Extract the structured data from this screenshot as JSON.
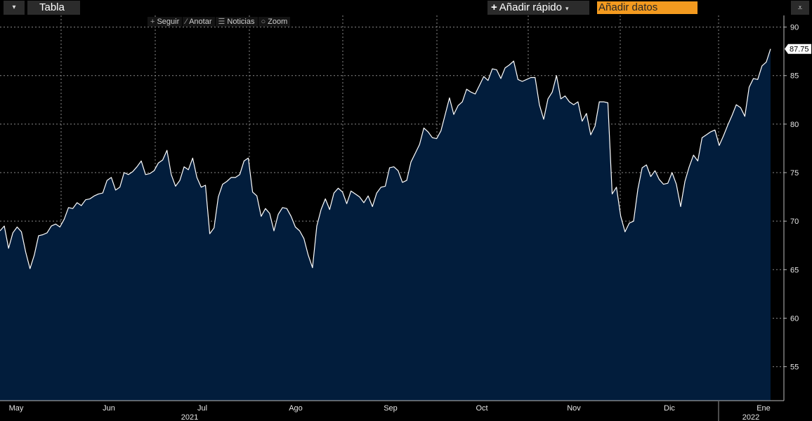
{
  "toolbar": {
    "dropdown_icon": "▾",
    "tabla_label": "Tabla",
    "quick_add_label": "Añadir rápido",
    "add_data_placeholder": "Añadir datos",
    "menu_icon": "⩡"
  },
  "chart_tools": {
    "follow": "Seguir",
    "annotate": "Anotar",
    "news": "Noticias",
    "zoom": "Zoom"
  },
  "colors": {
    "background": "#000000",
    "area_fill": "#021d3c",
    "line": "#ffffff",
    "grid": "#8a8a8a",
    "accent": "#f39a1f"
  },
  "chart_data": {
    "type": "area",
    "ylim": [
      51.5,
      91.2
    ],
    "y_ticks": [
      55,
      60,
      65,
      70,
      75,
      80,
      85,
      90
    ],
    "x_labels": [
      "May",
      "Jun",
      "Jul",
      "Ago",
      "Sep",
      "Oct",
      "Nov",
      "Dic",
      "Ene"
    ],
    "year_labels": [
      "2021",
      "2022"
    ],
    "last_value_label": "87.75",
    "grid": true,
    "series": [
      {
        "values": [
          69.0,
          69.5,
          67.2,
          68.8,
          69.4,
          68.9,
          66.8,
          65.1,
          66.5,
          68.5,
          68.6,
          68.8,
          69.5,
          69.7,
          69.4,
          70.2,
          71.4,
          71.3,
          71.9,
          71.6,
          72.2,
          72.3,
          72.6,
          72.8,
          72.9,
          74.2,
          74.5,
          73.2,
          73.5,
          75.0,
          74.8,
          75.1,
          75.6,
          76.2,
          74.8,
          74.9,
          75.2,
          76.0,
          76.3,
          77.3,
          74.8,
          73.6,
          74.2,
          75.6,
          75.3,
          76.5,
          74.5,
          73.5,
          73.7,
          68.7,
          69.3,
          72.5,
          73.8,
          74.1,
          74.5,
          74.5,
          74.8,
          76.2,
          76.5,
          73.0,
          72.6,
          70.5,
          71.3,
          70.8,
          69.0,
          70.7,
          71.4,
          71.3,
          70.5,
          69.4,
          69.0,
          68.2,
          66.5,
          65.2,
          69.5,
          71.2,
          72.3,
          71.2,
          72.9,
          73.4,
          73.0,
          71.8,
          73.1,
          72.8,
          72.5,
          71.9,
          72.6,
          71.5,
          72.9,
          73.5,
          73.6,
          75.5,
          75.6,
          75.2,
          74.0,
          74.2,
          76.1,
          77.0,
          77.9,
          79.6,
          79.2,
          78.6,
          78.5,
          79.3,
          81.0,
          82.7,
          81.0,
          81.9,
          82.3,
          83.6,
          83.3,
          83.1,
          84.0,
          84.9,
          84.5,
          85.7,
          85.6,
          84.7,
          85.8,
          86.1,
          86.5,
          84.6,
          84.4,
          84.6,
          84.8,
          84.8,
          82.0,
          80.5,
          82.6,
          83.3,
          85.0,
          82.6,
          82.9,
          82.3,
          82.0,
          82.3,
          80.3,
          81.1,
          78.9,
          79.8,
          82.3,
          82.3,
          82.2,
          72.8,
          73.5,
          70.5,
          68.9,
          69.8,
          70.0,
          73.3,
          75.5,
          75.8,
          74.6,
          75.2,
          74.3,
          73.8,
          73.9,
          75.0,
          73.8,
          71.5,
          74.1,
          75.6,
          76.8,
          76.2,
          78.6,
          78.9,
          79.2,
          79.4,
          77.8,
          78.8,
          79.9,
          80.9,
          82.0,
          81.7,
          80.8,
          83.8,
          84.7,
          84.6,
          86.0,
          86.4,
          87.75
        ]
      }
    ]
  }
}
